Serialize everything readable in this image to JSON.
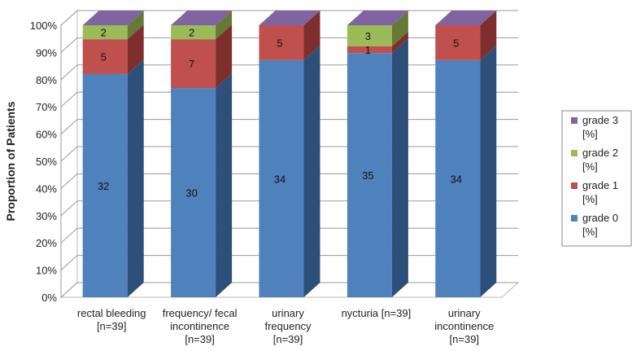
{
  "chart_data": {
    "type": "bar",
    "stacked": "percent",
    "ylabel": "Proportion of Patients",
    "ylim": [
      0,
      100
    ],
    "ytick_suffix": "%",
    "yticks": [
      0,
      10,
      20,
      30,
      40,
      50,
      60,
      70,
      80,
      90,
      100
    ],
    "grid": true,
    "legend_position": "right",
    "categories": [
      [
        "rectal bleeding",
        "[n=39]"
      ],
      [
        "frequency/ fecal",
        "incontinence",
        "[n=39]"
      ],
      [
        "urinary",
        "frequency",
        "[n=39]"
      ],
      [
        "nycturia [n=39]"
      ],
      [
        "urinary",
        "incontinence",
        "[n=39]"
      ]
    ],
    "series": [
      {
        "name": [
          "grade 0",
          "[%]"
        ],
        "color": "#4F81BD",
        "side": "#2E4F7A",
        "top": "#5B8ACB",
        "values": [
          32,
          30,
          34,
          35,
          34
        ]
      },
      {
        "name": [
          "grade 1",
          "[%]"
        ],
        "color": "#C0504D",
        "side": "#7E2F2D",
        "top": "#C96966",
        "values": [
          5,
          7,
          5,
          1,
          5
        ]
      },
      {
        "name": [
          "grade 2",
          "[%]"
        ],
        "color": "#9BBB59",
        "side": "#657A37",
        "top": "#AECB71",
        "values": [
          2,
          2,
          0,
          3,
          0
        ]
      },
      {
        "name": [
          "grade 3",
          "[%]"
        ],
        "color": "#8064A2",
        "side": "#52406A",
        "top": "#8064A2",
        "values": [
          0,
          0,
          0,
          0,
          0
        ]
      }
    ]
  }
}
